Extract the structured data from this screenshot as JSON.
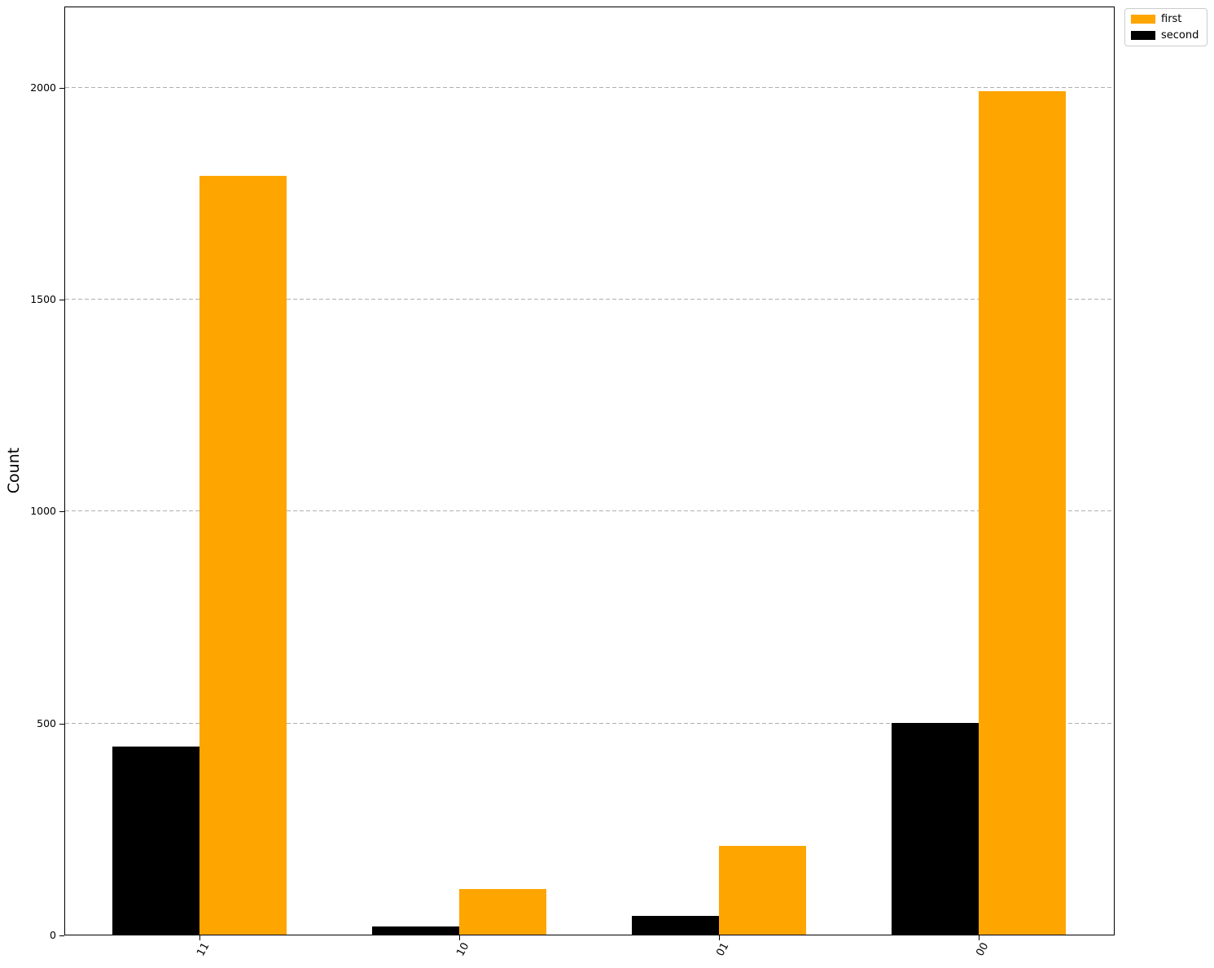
{
  "chart_data": {
    "type": "bar",
    "title": "",
    "xlabel": "",
    "ylabel": "Count",
    "categories": [
      "11",
      "10",
      "01",
      "00"
    ],
    "series": [
      {
        "name": "first",
        "color": "#ffa500",
        "values": [
          1790,
          108,
          210,
          1990
        ]
      },
      {
        "name": "second",
        "color": "#000000",
        "values": [
          443,
          20,
          44,
          500
        ]
      }
    ],
    "bar_group_order": [
      "second",
      "first"
    ],
    "yticks": [
      0,
      500,
      1000,
      1500,
      2000
    ],
    "ylim": [
      0,
      2188
    ],
    "grid": {
      "axis": "y",
      "style": "dashed",
      "color": "#b0b0b0"
    },
    "legend": {
      "position": "outside-top-right",
      "border_color": "#cccccc"
    },
    "xticklabel_rotation_deg": 62
  }
}
